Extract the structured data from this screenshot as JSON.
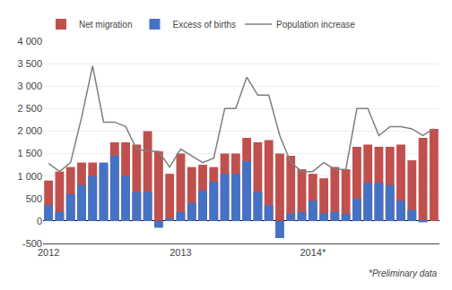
{
  "chart_data": {
    "type": "bar",
    "categories": [
      "2012",
      null,
      null,
      null,
      null,
      null,
      null,
      null,
      null,
      null,
      null,
      null,
      "2013",
      null,
      null,
      null,
      null,
      null,
      null,
      null,
      null,
      null,
      null,
      null,
      "2014*",
      null,
      null,
      null,
      null,
      null,
      null,
      null,
      null,
      null,
      null,
      null
    ],
    "series": [
      {
        "name": "Net migration",
        "type": "bar",
        "color": "#c0504d",
        "values": [
          900,
          1100,
          1200,
          1300,
          1300,
          1250,
          1750,
          1750,
          1700,
          2000,
          1550,
          1050,
          1500,
          1200,
          1250,
          1200,
          1500,
          1500,
          1850,
          1750,
          1800,
          1500,
          1450,
          1150,
          1050,
          950,
          1200,
          1150,
          1650,
          1700,
          1650,
          1650,
          1700,
          1350,
          1850,
          2050
        ]
      },
      {
        "name": "Excess of births",
        "type": "bar",
        "color": "#4472c4",
        "values": [
          350,
          200,
          600,
          800,
          1000,
          1300,
          1450,
          1000,
          650,
          650,
          -150,
          60,
          200,
          400,
          680,
          870,
          1050,
          1050,
          1330,
          650,
          350,
          -380,
          170,
          200,
          450,
          170,
          200,
          160,
          500,
          850,
          850,
          800,
          450,
          250,
          -30,
          0
        ]
      },
      {
        "name": "Population increase",
        "type": "line",
        "color": "#7f7f7f",
        "values": [
          1280,
          1100,
          1300,
          2300,
          3450,
          2200,
          2200,
          2100,
          1600,
          1550,
          1550,
          1200,
          1600,
          1450,
          1300,
          1400,
          2500,
          2500,
          3200,
          2800,
          2800,
          1900,
          1300,
          1100,
          1100,
          1300,
          1150,
          1150,
          2500,
          2500,
          1900,
          2100,
          2100,
          2050,
          1900,
          2050
        ]
      }
    ],
    "ylim": [
      -500,
      4000
    ],
    "yticks": [
      -500,
      0,
      500,
      {
        "value": 1000,
        "label": "1 000"
      },
      {
        "value": 1500,
        "label": "1 500"
      },
      {
        "value": 2000,
        "label": "2 000"
      },
      {
        "value": 2500,
        "label": "2 500"
      },
      {
        "value": 3000,
        "label": "3 000"
      },
      {
        "value": 3500,
        "label": "3 500"
      },
      {
        "value": 4000,
        "label": "4 000"
      }
    ],
    "grid": true,
    "legend": "top-left",
    "annotations": [
      "*Preliminary data"
    ]
  }
}
